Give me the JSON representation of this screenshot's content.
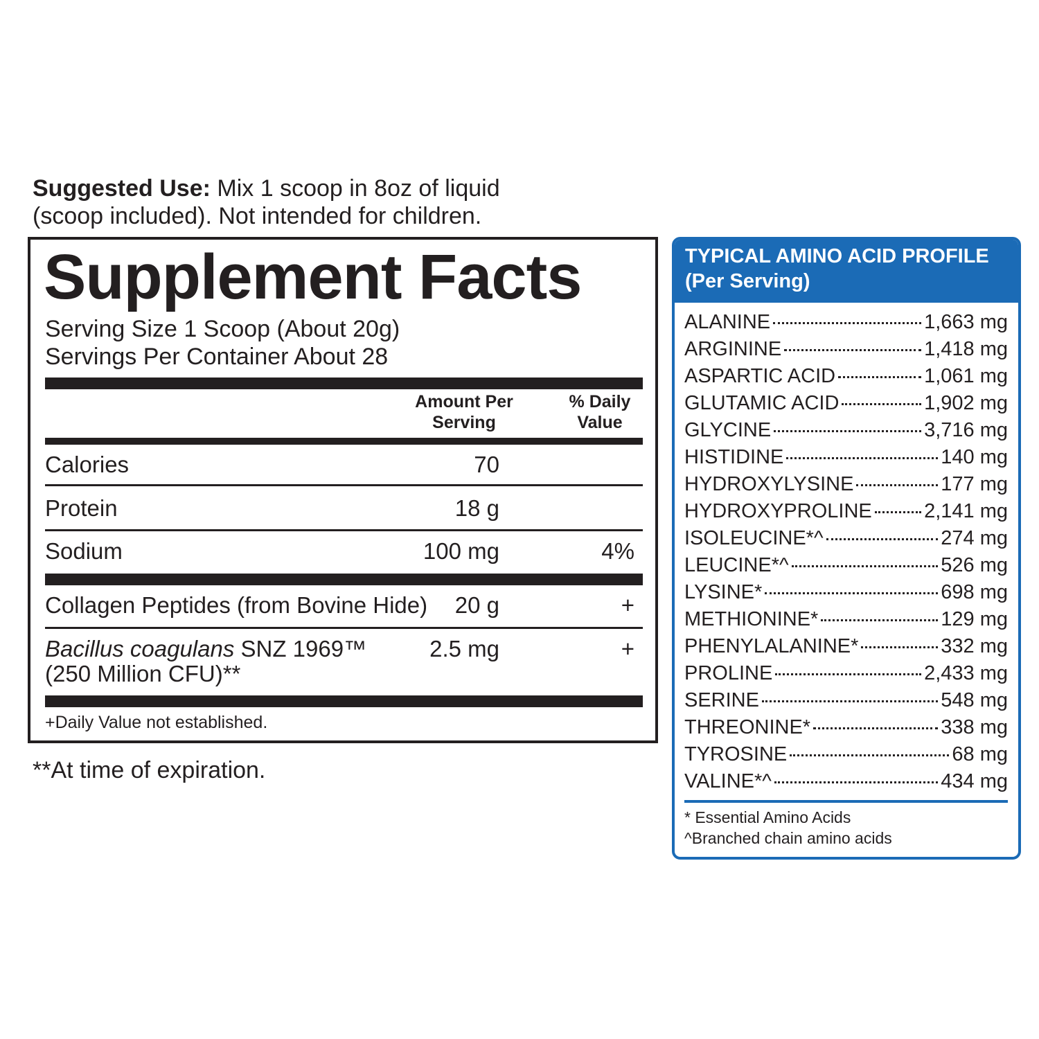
{
  "suggested_use": {
    "label": "Suggested Use:",
    "lines": [
      "Mix 1 scoop in 8oz of liquid",
      "(scoop included). Not intended for children."
    ]
  },
  "facts": {
    "title": "Supplement Facts",
    "serving_size": "Serving Size 1 Scoop (About 20g)",
    "servings_per_container": "Servings Per Container About 28",
    "header": {
      "amount": "Amount Per Serving",
      "daily_value": "% Daily Value"
    },
    "rows": [
      {
        "name": "Calories",
        "amount": "70"
      },
      {
        "name": "Protein",
        "amount": "18 g"
      },
      {
        "name": "Sodium",
        "amount": "100 mg",
        "daily_value": "4%"
      },
      {
        "name": "Collagen Peptides (from Bovine Hide)",
        "amount": "20 g",
        "daily_value": "+"
      },
      {
        "name_italic": "Bacillus coagulans",
        "name": "SNZ 1969™",
        "name_line2": "(250 Million CFU)**",
        "amount": "2.5 mg",
        "daily_value": "+"
      }
    ],
    "footnote": "+Daily Value not established."
  },
  "expiration_note": "**At time of expiration.",
  "amino": {
    "title": "TYPICAL AMINO ACID PROFILE",
    "subtitle": "(Per Serving)",
    "items": [
      {
        "name": "ALANINE",
        "amount": "1,663 mg"
      },
      {
        "name": "ARGININE",
        "amount": "1,418 mg"
      },
      {
        "name": "ASPARTIC ACID",
        "amount": "1,061 mg"
      },
      {
        "name": "GLUTAMIC ACID",
        "amount": "1,902 mg"
      },
      {
        "name": "GLYCINE",
        "amount": "3,716 mg"
      },
      {
        "name": "HISTIDINE",
        "amount": "140 mg"
      },
      {
        "name": "HYDROXYLYSINE",
        "amount": "177 mg"
      },
      {
        "name": "HYDROXYPROLINE",
        "amount": "2,141 mg"
      },
      {
        "name": "ISOLEUCINE*^",
        "amount": "274 mg"
      },
      {
        "name": "LEUCINE*^",
        "amount": "526 mg"
      },
      {
        "name": "LYSINE*",
        "amount": "698 mg"
      },
      {
        "name": "METHIONINE*",
        "amount": "129 mg"
      },
      {
        "name": "PHENYLALANINE*",
        "amount": "332 mg"
      },
      {
        "name": "PROLINE",
        "amount": "2,433 mg"
      },
      {
        "name": "SERINE",
        "amount": "548 mg"
      },
      {
        "name": "THREONINE*",
        "amount": "338 mg"
      },
      {
        "name": "TYROSINE",
        "amount": "68 mg"
      },
      {
        "name": "VALINE*^",
        "amount": "434 mg"
      }
    ],
    "footnotes": [
      "* Essential Amino Acids",
      "^Branched chain amino acids"
    ]
  }
}
